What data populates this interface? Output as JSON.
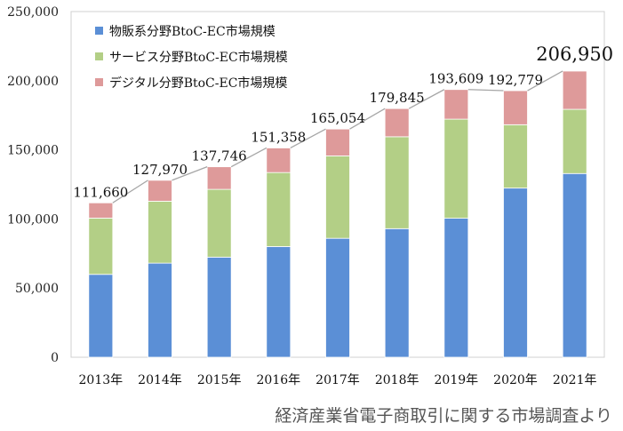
{
  "chart_data": {
    "type": "bar",
    "stacked": true,
    "categories": [
      "2013年",
      "2014年",
      "2015年",
      "2016年",
      "2017年",
      "2018年",
      "2019年",
      "2020年",
      "2021年"
    ],
    "series": [
      {
        "name": "物販系分野BtoC-EC市場規模",
        "color": "#5b8fd6",
        "values": [
          59931,
          68043,
          72398,
          80043,
          86008,
          92992,
          100515,
          122333,
          132865
        ]
      },
      {
        "name": "サービス分野BtoC-EC市場規模",
        "color": "#b3cf86",
        "values": [
          40721,
          44816,
          49014,
          53532,
          59568,
          66471,
          71672,
          45832,
          46424
        ]
      },
      {
        "name": "デジタル分野BtoC-EC市場規模",
        "color": "#de9a9a",
        "values": [
          11008,
          15111,
          16334,
          17782,
          19478,
          20382,
          21422,
          24614,
          27661
        ]
      }
    ],
    "totals": [
      "111,660",
      "127,970",
      "137,746",
      "151,358",
      "165,054",
      "179,845",
      "193,609",
      "192,779",
      "206,950"
    ],
    "total_values": [
      111660,
      127970,
      137746,
      151358,
      165054,
      179845,
      193609,
      192779,
      206950
    ],
    "y_ticks": [
      "0",
      "50,000",
      "100,000",
      "150,000",
      "200,000",
      "250,000"
    ],
    "y_tick_values": [
      0,
      50000,
      100000,
      150000,
      200000,
      250000
    ],
    "ylim": [
      0,
      250000
    ],
    "grid": false,
    "legend_position": "top-left",
    "total_line_color": "#a6a6a6"
  },
  "source": "経済産業省電子商取引に関する市場調査より"
}
